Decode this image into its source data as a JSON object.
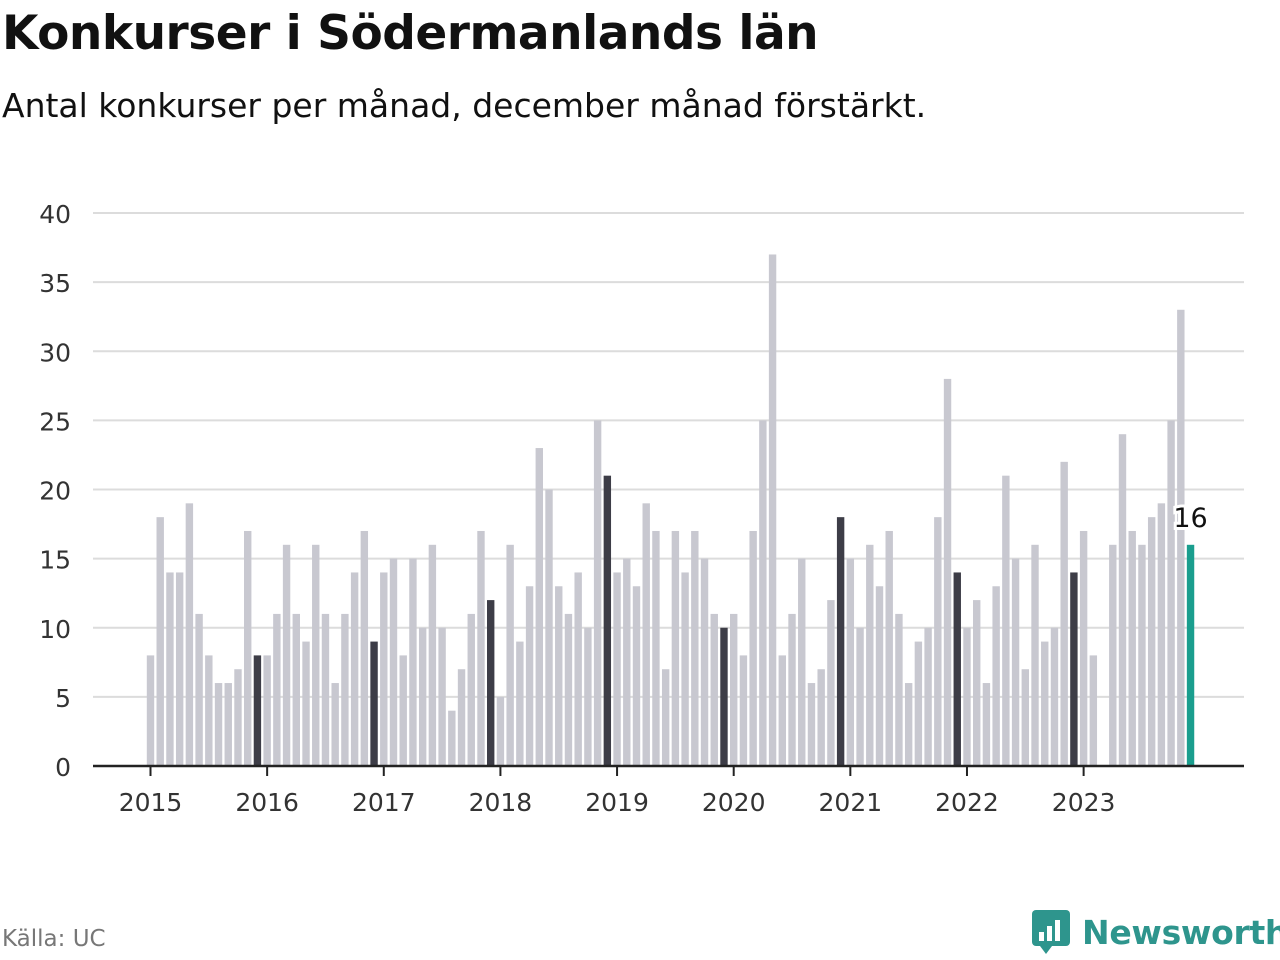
{
  "title": "Konkurser i Södermanlands län",
  "subtitle": "Antal konkurser per månad, december månad förstärkt.",
  "source": "Källa: UC",
  "brand": "Newsworthy",
  "colors": {
    "regular_bar": "#c8c8d0",
    "december_bar": "#3d3d47",
    "latest_bar": "#1a9e8e",
    "grid": "#dcdcdc",
    "axis": "#222222",
    "brand": "#2e958d"
  },
  "chart_data": {
    "type": "bar",
    "title": "Konkurser i Södermanlands län",
    "subtitle": "Antal konkurser per månad, december månad förstärkt.",
    "ylim": [
      0,
      40
    ],
    "yticks": [
      0,
      5,
      10,
      15,
      20,
      25,
      30,
      35,
      40
    ],
    "xticks": [
      "2015",
      "2016",
      "2017",
      "2018",
      "2019",
      "2020",
      "2021",
      "2022",
      "2023"
    ],
    "grid": true,
    "start": "2015-01",
    "end": "2023-12",
    "values": [
      8,
      18,
      14,
      14,
      19,
      11,
      8,
      6,
      6,
      7,
      17,
      8,
      8,
      11,
      16,
      11,
      9,
      16,
      11,
      6,
      11,
      14,
      17,
      9,
      14,
      15,
      8,
      15,
      10,
      16,
      10,
      4,
      7,
      11,
      17,
      12,
      5,
      16,
      9,
      13,
      23,
      20,
      13,
      11,
      14,
      10,
      25,
      21,
      14,
      15,
      13,
      19,
      17,
      7,
      17,
      14,
      17,
      15,
      11,
      10,
      11,
      8,
      17,
      25,
      37,
      8,
      11,
      15,
      6,
      7,
      12,
      18,
      15,
      10,
      16,
      13,
      17,
      11,
      6,
      9,
      10,
      18,
      28,
      14,
      10,
      12,
      6,
      13,
      21,
      15,
      7,
      16,
      9,
      10,
      22,
      14,
      17,
      8,
      0,
      16,
      24,
      17,
      16,
      18,
      19,
      25,
      33,
      16
    ],
    "highlight": "december",
    "annotation": {
      "text": "16",
      "month": "2023-12"
    }
  }
}
